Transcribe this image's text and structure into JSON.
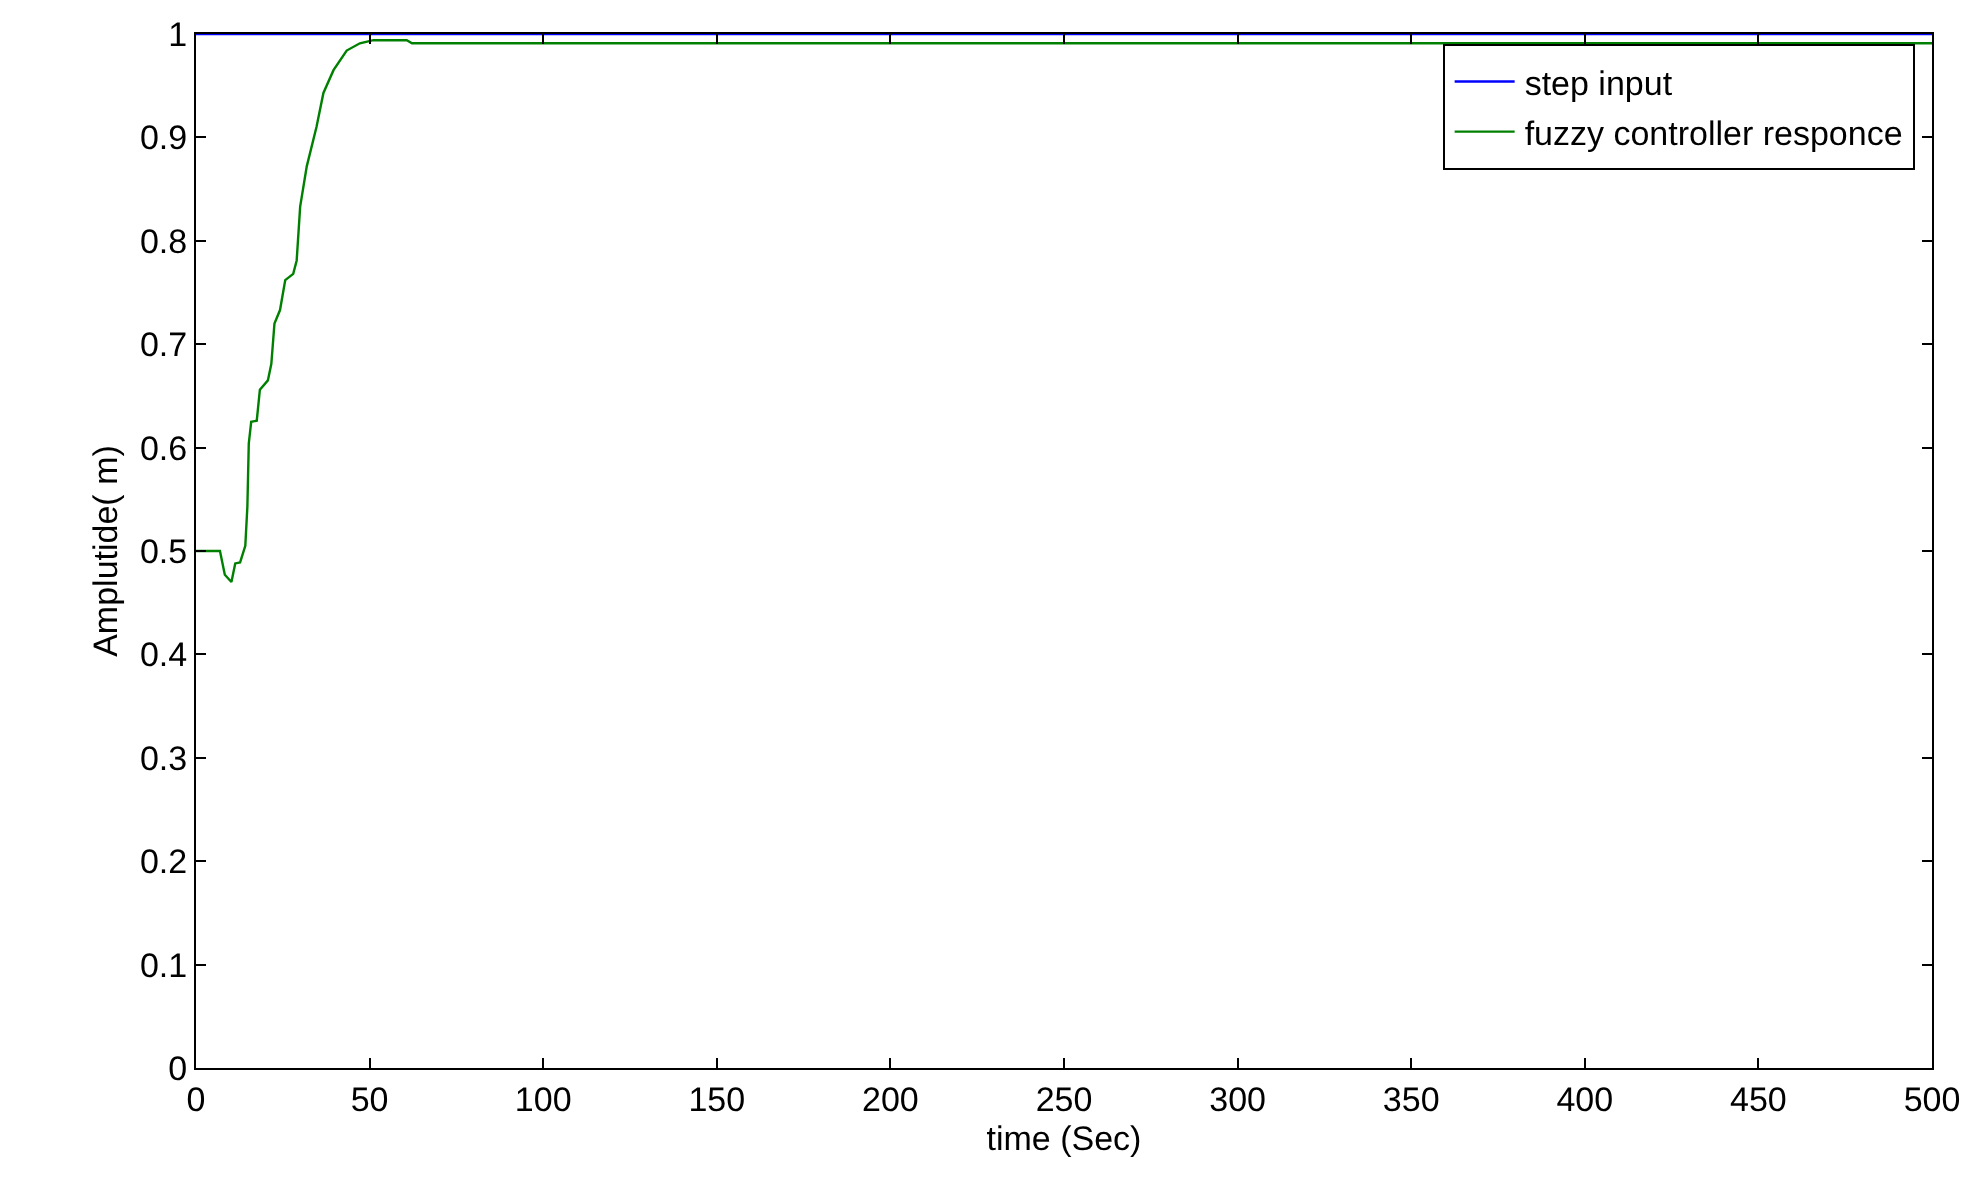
{
  "chart_data": {
    "type": "line",
    "xlabel": "time (Sec)",
    "ylabel": "Amplutide( m)",
    "xlim": [
      0,
      500
    ],
    "xticks": [
      0,
      50,
      100,
      150,
      200,
      250,
      300,
      350,
      400,
      450,
      500
    ],
    "ylim": [
      0,
      1
    ],
    "yticks": [
      0,
      0.1,
      0.2,
      0.3,
      0.4,
      0.5,
      0.6,
      0.7,
      0.8,
      0.9,
      1
    ],
    "grid": false,
    "legend": "top right",
    "marker": "none",
    "line_style": "solid",
    "series": [
      {
        "name": "step input",
        "color": "#0000ff",
        "x": [
          0,
          500
        ],
        "values": [
          1,
          1
        ]
      },
      {
        "name": "fuzzy controller responce",
        "color": "#008000",
        "x": [
          0,
          6.9,
          8.3,
          10.2,
          11.3,
          12.7,
          14.2,
          14.8,
          15.2,
          15.9,
          17.5,
          18.4,
          20.7,
          21.7,
          22.6,
          24.2,
          25.7,
          28,
          29,
          30,
          31.9,
          34.7,
          36.7,
          39.6,
          43.4,
          47.2,
          51.1,
          60.7,
          62.2,
          500
        ],
        "values": [
          0.5,
          0.5,
          0.477,
          0.47,
          0.488,
          0.489,
          0.505,
          0.543,
          0.604,
          0.625,
          0.626,
          0.656,
          0.665,
          0.681,
          0.72,
          0.733,
          0.762,
          0.768,
          0.781,
          0.833,
          0.872,
          0.91,
          0.943,
          0.965,
          0.984,
          0.991,
          0.994,
          0.994,
          0.991,
          0.991
        ]
      }
    ]
  }
}
